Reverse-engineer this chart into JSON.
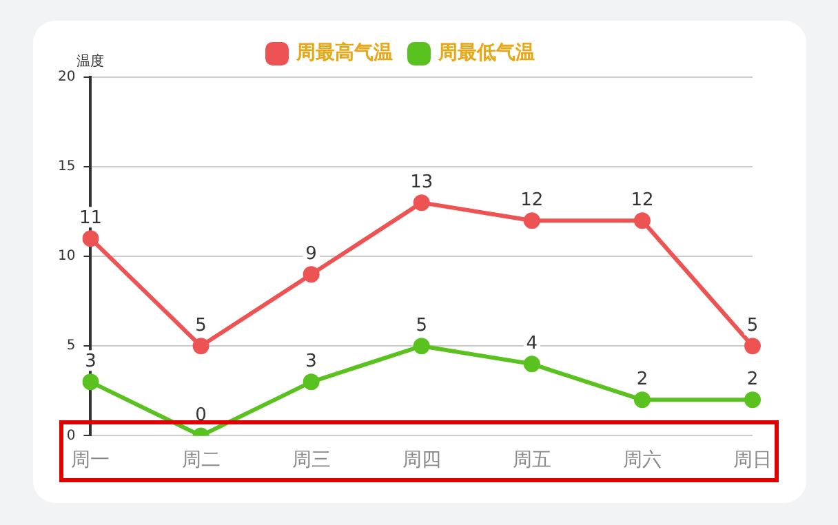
{
  "chart_data": {
    "type": "line",
    "ylabel": "温度",
    "categories": [
      "周一",
      "周二",
      "周三",
      "周四",
      "周五",
      "周六",
      "周日"
    ],
    "series": [
      {
        "name": "周最高气温",
        "color": "#ee5353",
        "values": [
          11,
          5,
          9,
          13,
          12,
          12,
          5
        ]
      },
      {
        "name": "周最低气温",
        "color": "#5ac21f",
        "values": [
          3,
          0,
          3,
          5,
          4,
          2,
          2
        ]
      }
    ],
    "ylim": [
      0,
      20
    ],
    "yticks": [
      0,
      5,
      10,
      15,
      20
    ],
    "grid": "y",
    "legend": "top",
    "marker": "circle",
    "line_style": "solid",
    "data_labels": true
  }
}
